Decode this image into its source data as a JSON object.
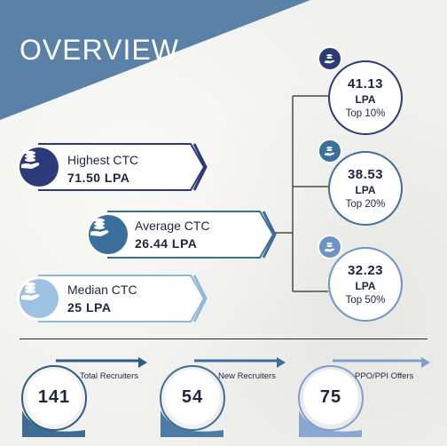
{
  "header": {
    "title": "OVERVIEW",
    "banner_color": "#5a82a8"
  },
  "ctc": {
    "highest": {
      "label": "Highest CTC",
      "value": "71.50 LPA",
      "color": "#2b3a7a"
    },
    "average": {
      "label": "Average CTC",
      "value": "26.44 LPA",
      "color": "#3a6f9c"
    },
    "median": {
      "label": "Median CTC",
      "value": "25 LPA",
      "color": "#8fb8dc"
    }
  },
  "percentiles": [
    {
      "value": "41.13",
      "unit": "LPA",
      "label": "Top 10%",
      "color": "#2b3a7a"
    },
    {
      "value": "38.53",
      "unit": "LPA",
      "label": "Top 20%",
      "color": "#3a6f9c"
    },
    {
      "value": "32.23",
      "unit": "LPA",
      "label": "Top 50%",
      "color": "#6f93c8"
    }
  ],
  "stats": [
    {
      "value": "141",
      "label": "Total Recruiters",
      "color": "#2b5d86"
    },
    {
      "value": "54",
      "label": "New Recruiters",
      "color": "#3a6f9c"
    },
    {
      "value": "75",
      "label": "PPO/PPI Offers",
      "color": "#7f9fcf"
    }
  ],
  "icons": {
    "ctc": "money-hand-icon",
    "percentile": "money-hand-icon"
  }
}
